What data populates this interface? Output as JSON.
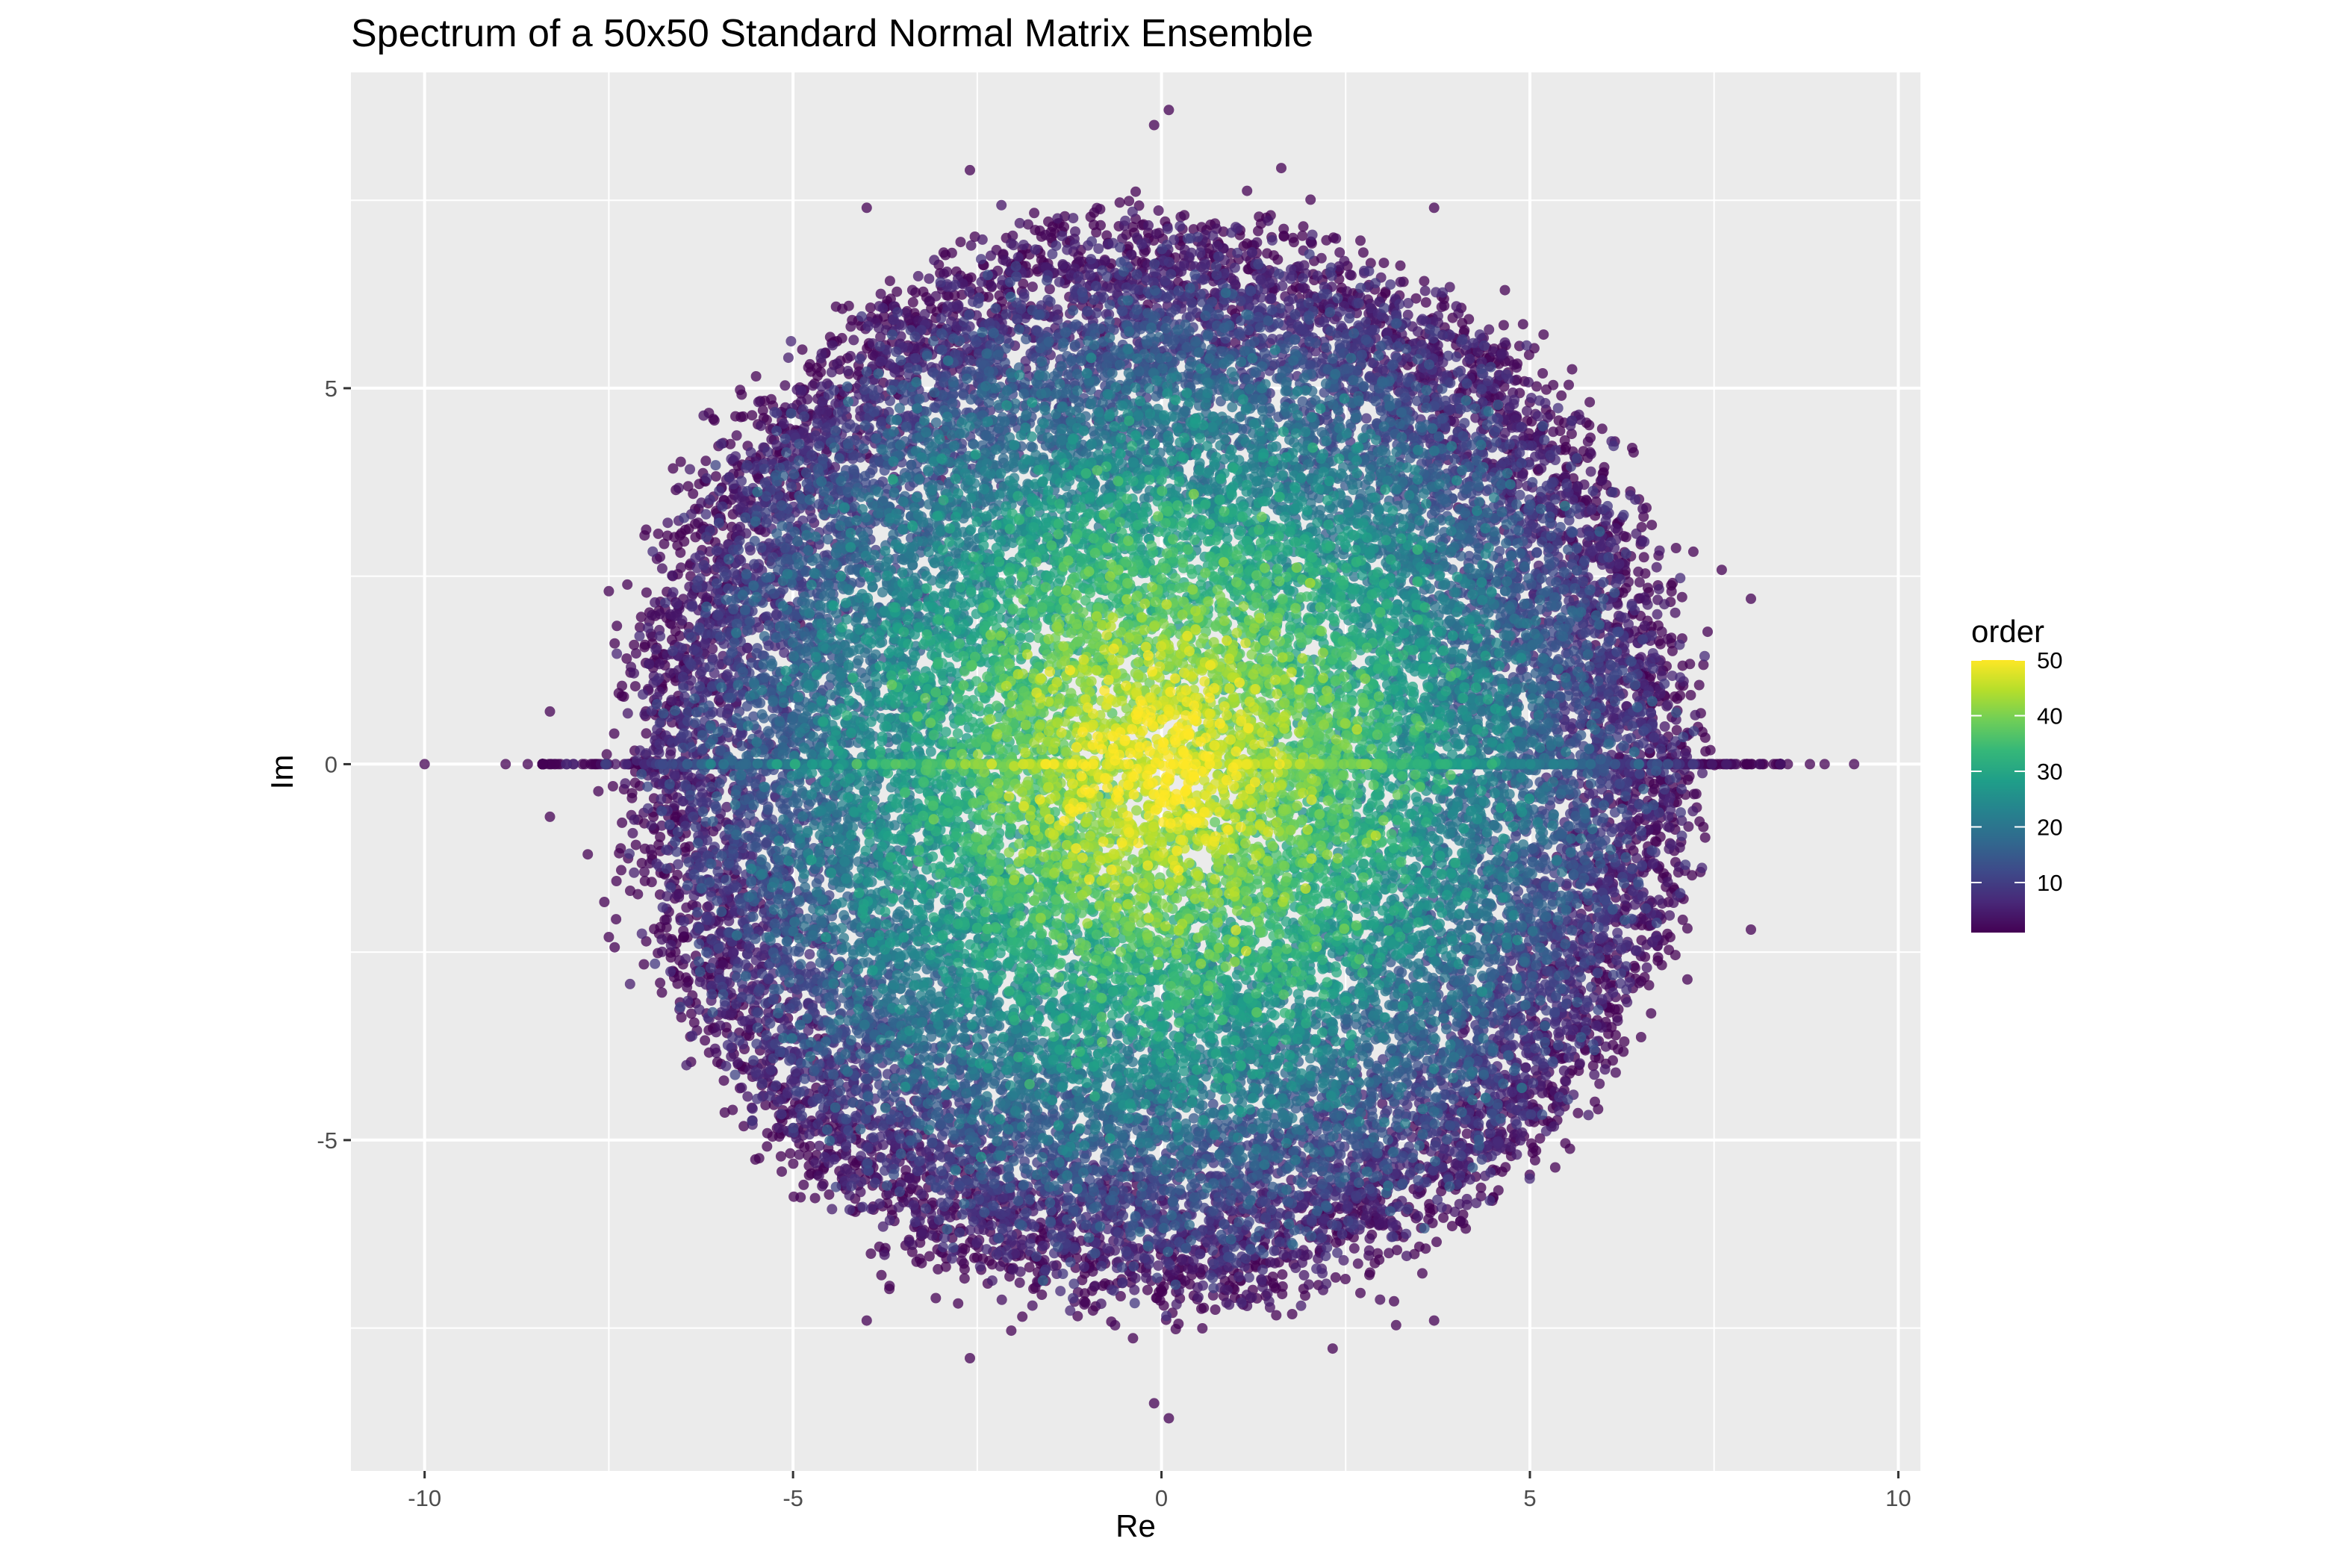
{
  "chart_data": {
    "type": "scatter",
    "title": "Spectrum of a 50x50 Standard Normal Matrix Ensemble",
    "xlabel": "Re",
    "ylabel": "Im",
    "xlim": [
      -11.0,
      10.3
    ],
    "ylim": [
      -9.4,
      9.2
    ],
    "x_ticks": [
      -10,
      -5,
      0,
      5,
      10
    ],
    "x_tick_labels": [
      "-10",
      "-5",
      "0",
      "5",
      "10"
    ],
    "y_ticks": [
      -5,
      0,
      5
    ],
    "y_tick_labels": [
      "-5",
      "0",
      "5"
    ],
    "x_minor_ticks": [
      -7.5,
      -2.5,
      2.5,
      7.5
    ],
    "y_minor_ticks": [
      -7.5,
      -2.5,
      2.5,
      7.5
    ],
    "grid": true,
    "panel_background": "#ebebeb",
    "point_alpha": 0.75,
    "color_scale": {
      "name": "order",
      "palette": "viridis",
      "colors": [
        "#440154",
        "#482878",
        "#3e4989",
        "#31688e",
        "#26828e",
        "#1f9e89",
        "#35b779",
        "#6ece58",
        "#b5de2b",
        "#fde725"
      ],
      "min": 1,
      "max": 50,
      "breaks": [
        10,
        20,
        30,
        40,
        50
      ],
      "break_labels": [
        "10",
        "20",
        "30",
        "40",
        "50"
      ],
      "legend_position": "right"
    },
    "series": [
      {
        "description_of_distribution": "complex eigenvalues fill a disk of radius about 7.07 centred at the origin, real eigenvalues lie on Im = 0 between about -10 and 9.4; points near the centre have high order (yellow), points near the edge low order (purple)",
        "disk_radius": 7.07,
        "points": [
          {
            "x": -10.0,
            "y": 0.0,
            "order": 1
          },
          {
            "x": 9.4,
            "y": 0.0,
            "order": 1
          },
          {
            "x": -8.9,
            "y": 0.0,
            "order": 1
          },
          {
            "x": 9.0,
            "y": 0.0,
            "order": 1
          },
          {
            "x": 8.8,
            "y": 0.0,
            "order": 1
          },
          {
            "x": -8.6,
            "y": 0.0,
            "order": 1
          },
          {
            "x": 8.5,
            "y": 0.0,
            "order": 1
          },
          {
            "x": 0.1,
            "y": 8.7,
            "order": 1
          },
          {
            "x": -0.1,
            "y": 8.5,
            "order": 1
          },
          {
            "x": 0.1,
            "y": -8.7,
            "order": 1
          },
          {
            "x": -0.1,
            "y": -8.5,
            "order": 1
          },
          {
            "x": -2.6,
            "y": 7.9,
            "order": 1
          },
          {
            "x": -2.6,
            "y": -7.9,
            "order": 1
          },
          {
            "x": -8.3,
            "y": 0.7,
            "order": 1
          },
          {
            "x": -8.3,
            "y": -0.7,
            "order": 1
          },
          {
            "x": -7.5,
            "y": 2.3,
            "order": 1
          },
          {
            "x": -7.5,
            "y": -2.3,
            "order": 1
          },
          {
            "x": 8.0,
            "y": 2.2,
            "order": 1
          },
          {
            "x": 8.0,
            "y": -2.2,
            "order": 1
          },
          {
            "x": 3.7,
            "y": 7.4,
            "order": 1
          },
          {
            "x": 3.7,
            "y": -7.4,
            "order": 1
          },
          {
            "x": -4.0,
            "y": 7.4,
            "order": 1
          },
          {
            "x": -4.0,
            "y": -7.4,
            "order": 1
          }
        ]
      }
    ]
  }
}
